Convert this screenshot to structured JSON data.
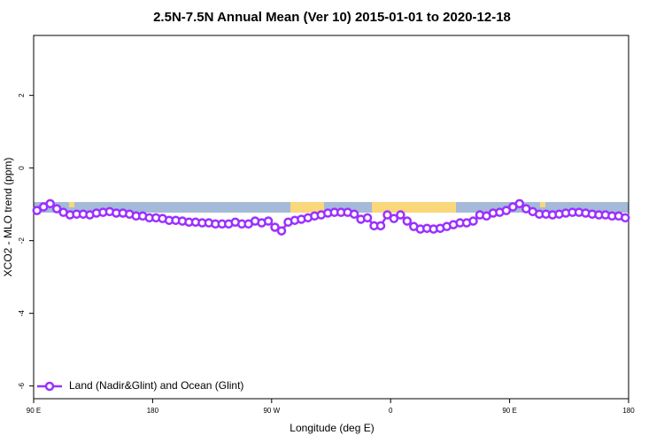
{
  "chart_data": {
    "type": "line",
    "title": "2.5N-7.5N Annual Mean (Ver 10)   2015-01-01 to 2020-12-18",
    "x_label": "Longitude (deg E)",
    "y_label": "XCO2 - MLO trend (ppm)",
    "xlim": [
      90,
      540
    ],
    "ylim": [
      -6.35,
      3.65
    ],
    "xticks": [
      {
        "value": 90,
        "label": "90 E"
      },
      {
        "value": 180,
        "label": "180"
      },
      {
        "value": 270,
        "label": "90 W"
      },
      {
        "value": 360,
        "label": "0"
      },
      {
        "value": 450,
        "label": "90 E"
      },
      {
        "value": 540,
        "label": "180"
      }
    ],
    "yticks": [
      2,
      0,
      -2,
      -4,
      -6
    ],
    "legend": "bottom-left",
    "series": [
      {
        "name": "Land (Nadir&Glint) and Ocean (Glint)",
        "color": "#9b30ff",
        "x": [
          92.5,
          97.5,
          102.5,
          107.5,
          112.5,
          117.5,
          122.5,
          127.5,
          132.5,
          137.5,
          142.5,
          147.5,
          152.5,
          157.5,
          162.5,
          167.5,
          172.5,
          177.5,
          182.5,
          187.5,
          192.5,
          197.5,
          202.5,
          207.5,
          212.5,
          217.5,
          222.5,
          227.5,
          232.5,
          237.5,
          242.5,
          247.5,
          252.5,
          257.5,
          262.5,
          267.5,
          272.5,
          277.5,
          282.5,
          287.5,
          292.5,
          297.5,
          302.5,
          307.5,
          312.5,
          317.5,
          322.5,
          327.5,
          332.5,
          337.5,
          342.5,
          347.5,
          352.5,
          357.5,
          362.5,
          367.5,
          372.5,
          377.5,
          382.5,
          387.5,
          392.5,
          397.5,
          402.5,
          407.5,
          412.5,
          417.5,
          422.5,
          427.5,
          432.5,
          437.5,
          442.5,
          447.5,
          452.5,
          457.5,
          462.5,
          467.5,
          472.5,
          477.5,
          482.5,
          487.5,
          492.5,
          497.5,
          502.5,
          507.5,
          512.5,
          517.5,
          522.5,
          527.5,
          532.5,
          537.5
        ],
        "values": [
          -1.17,
          -1.07,
          -0.98,
          -1.12,
          -1.22,
          -1.29,
          -1.27,
          -1.27,
          -1.29,
          -1.24,
          -1.22,
          -1.2,
          -1.24,
          -1.24,
          -1.27,
          -1.32,
          -1.32,
          -1.37,
          -1.37,
          -1.39,
          -1.44,
          -1.44,
          -1.46,
          -1.49,
          -1.49,
          -1.51,
          -1.51,
          -1.54,
          -1.54,
          -1.54,
          -1.49,
          -1.54,
          -1.54,
          -1.46,
          -1.51,
          -1.46,
          -1.63,
          -1.73,
          -1.49,
          -1.44,
          -1.41,
          -1.37,
          -1.32,
          -1.29,
          -1.24,
          -1.22,
          -1.22,
          -1.22,
          -1.27,
          -1.41,
          -1.37,
          -1.59,
          -1.59,
          -1.29,
          -1.39,
          -1.29,
          -1.46,
          -1.61,
          -1.68,
          -1.66,
          -1.68,
          -1.66,
          -1.61,
          -1.56,
          -1.51,
          -1.51,
          -1.46,
          -1.29,
          -1.32,
          -1.24,
          -1.22,
          -1.17,
          -1.07,
          -0.98,
          -1.12,
          -1.2,
          -1.27,
          -1.27,
          -1.29,
          -1.27,
          -1.24,
          -1.22,
          -1.22,
          -1.24,
          -1.27,
          -1.29,
          -1.29,
          -1.32,
          -1.32,
          -1.37
        ]
      }
    ]
  }
}
